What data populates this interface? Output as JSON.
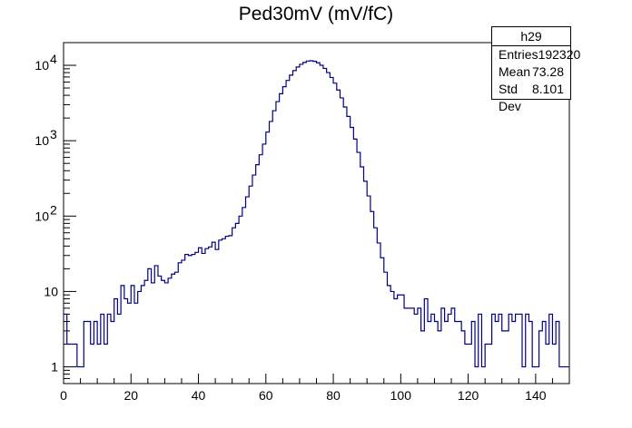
{
  "chart_data": {
    "type": "histogram",
    "title": "Ped30mV (mV/fC)",
    "xlabel": "",
    "ylabel": "",
    "xlim": [
      0,
      150
    ],
    "ylim": [
      0.6,
      20000
    ],
    "y_scale": "log",
    "x_ticks": [
      0,
      20,
      40,
      60,
      80,
      100,
      120,
      140
    ],
    "y_ticks": [
      {
        "value": 1,
        "label": "1",
        "sup": ""
      },
      {
        "value": 10,
        "label": "10",
        "sup": ""
      },
      {
        "value": 100,
        "label": "10",
        "sup": "2"
      },
      {
        "value": 1000,
        "label": "10",
        "sup": "3"
      },
      {
        "value": 10000,
        "label": "10",
        "sup": "4"
      }
    ],
    "line_color": "#000080",
    "bin_width": 1,
    "bins_x_start": 0,
    "counts": [
      5,
      2,
      2,
      2,
      1,
      1,
      4,
      4,
      2,
      4,
      2,
      5,
      2,
      5,
      4,
      8,
      5,
      12,
      8,
      7,
      12,
      7,
      10,
      12,
      14,
      20,
      13,
      22,
      16,
      14,
      13,
      15,
      17,
      18,
      24,
      26,
      31,
      30,
      31,
      33,
      38,
      32,
      37,
      39,
      45,
      36,
      48,
      50,
      54,
      55,
      70,
      80,
      100,
      130,
      180,
      250,
      350,
      480,
      650,
      900,
      1300,
      1800,
      2500,
      3300,
      4200,
      5200,
      6300,
      7400,
      8500,
      9500,
      10300,
      10900,
      11400,
      11500,
      11300,
      10800,
      10000,
      9100,
      8000,
      6900,
      5800,
      4700,
      3700,
      2800,
      2100,
      1500,
      1050,
      700,
      450,
      290,
      185,
      115,
      70,
      44,
      28,
      18,
      12,
      10,
      8,
      9,
      9,
      6,
      6,
      6,
      5,
      6,
      3,
      8,
      4,
      5,
      4,
      3,
      6,
      4,
      5,
      6,
      4,
      4,
      3,
      2,
      2,
      4,
      1,
      5,
      1,
      2,
      2,
      5,
      4,
      5,
      3,
      3,
      5,
      4,
      5,
      5,
      1,
      5,
      4,
      1,
      1,
      3,
      4,
      2,
      5,
      2,
      4,
      1,
      1,
      1
    ],
    "stats": {
      "name": "h29",
      "rows": [
        {
          "label": "Entries",
          "value": "192320"
        },
        {
          "label": "Mean",
          "value": "73.28"
        },
        {
          "label": "Std Dev",
          "value": "8.101"
        }
      ]
    }
  }
}
